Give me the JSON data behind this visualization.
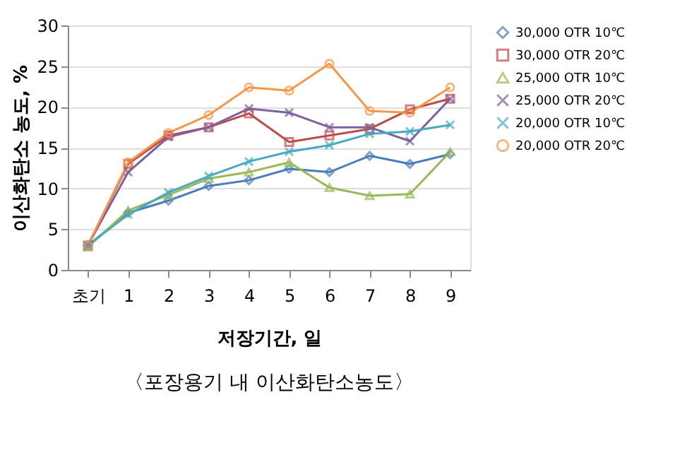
{
  "chart_data": {
    "type": "line",
    "title": "〈포장용기 내 이산화탄소농도〉",
    "xlabel": "저장기간, 일",
    "ylabel": "이산화탄소 농도, %",
    "categories": [
      "초기",
      "1",
      "2",
      "3",
      "4",
      "5",
      "6",
      "7",
      "8",
      "9"
    ],
    "series": [
      {
        "name": "30,000 OTR 10℃",
        "color": "#4a7ebb",
        "marker": "diamond",
        "values": [
          3,
          7,
          8.5,
          10.3,
          11,
          12.4,
          12,
          14,
          13,
          14.2
        ]
      },
      {
        "name": "30,000 OTR 20℃",
        "color": "#be4b48",
        "marker": "square",
        "values": [
          3,
          13,
          16.5,
          17.5,
          19.2,
          15.7,
          16.5,
          17.3,
          19.7,
          21
        ]
      },
      {
        "name": "25,000 OTR 10℃",
        "color": "#98b954",
        "marker": "triangle",
        "values": [
          2.8,
          7.3,
          9.2,
          11.2,
          12,
          13.2,
          10.1,
          9.1,
          9.3,
          14.5
        ]
      },
      {
        "name": "25,000 OTR 20℃",
        "color": "#7d60a0",
        "marker": "cross",
        "values": [
          3,
          12,
          16.3,
          17.5,
          19.8,
          19.3,
          17.5,
          17.5,
          15.8,
          21
        ]
      },
      {
        "name": "20,000 OTR 10℃",
        "color": "#46aac5",
        "marker": "cross",
        "values": [
          3,
          6.8,
          9.5,
          11.5,
          13.3,
          14.5,
          15.3,
          16.7,
          17,
          17.8
        ]
      },
      {
        "name": "20,000 OTR 20℃",
        "color": "#f79646",
        "marker": "circle",
        "values": [
          3,
          13.2,
          16.8,
          19,
          22.4,
          22,
          25.3,
          19.5,
          19.3,
          22.4
        ]
      }
    ],
    "ylim": [
      0,
      30
    ],
    "yticks": [
      0,
      5,
      10,
      15,
      20,
      25,
      30
    ],
    "grid": "y",
    "legend": "right"
  }
}
